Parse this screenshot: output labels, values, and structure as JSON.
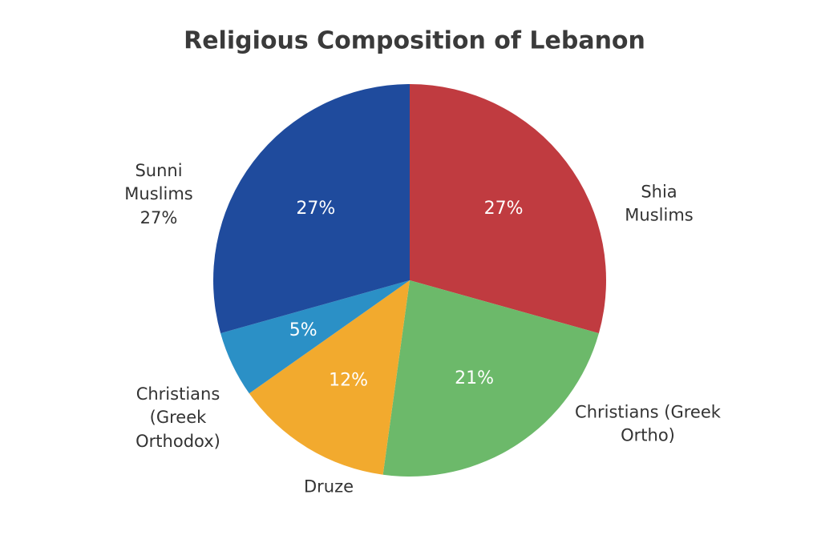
{
  "chart_data": {
    "type": "pie",
    "title": "Religious Composition of Lebanon",
    "categories": [
      "Shia Muslims",
      "Christians (Greek Ortho)",
      "Druze",
      "Christians (Greek Orthodox)",
      "Sunni Muslims"
    ],
    "values": [
      27,
      21,
      12,
      5,
      27
    ],
    "value_labels": [
      "27%",
      "21%",
      "12%",
      "5%",
      "27%"
    ],
    "colors": [
      "#c03b40",
      "#6cb96a",
      "#f2aa2e",
      "#2b90c6",
      "#1f4b9d"
    ]
  }
}
